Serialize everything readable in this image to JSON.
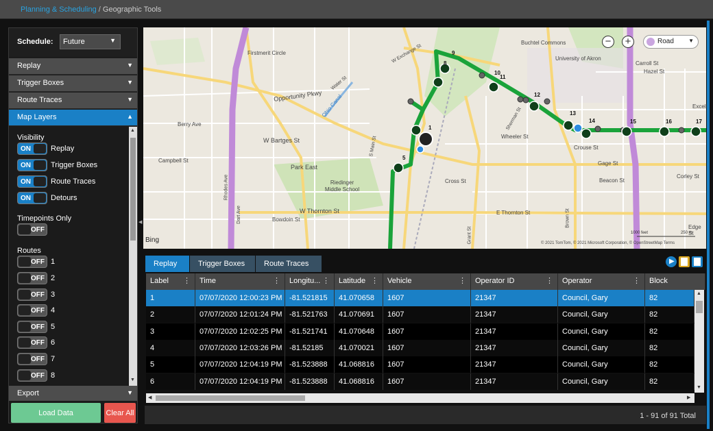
{
  "breadcrumb": {
    "section": "Planning & Scheduling",
    "separator": "/",
    "page": "Geographic Tools"
  },
  "sidebar": {
    "schedule_label": "Schedule:",
    "schedule_value": "Future",
    "accordion": [
      {
        "label": "Replay"
      },
      {
        "label": "Trigger Boxes"
      },
      {
        "label": "Route Traces"
      },
      {
        "label": "Map Layers"
      }
    ],
    "visibility_title": "Visibility",
    "visibility": [
      {
        "state": "ON",
        "label": "Replay"
      },
      {
        "state": "ON",
        "label": "Trigger Boxes"
      },
      {
        "state": "ON",
        "label": "Route Traces"
      },
      {
        "state": "ON",
        "label": "Detours"
      }
    ],
    "timepoints_title": "Timepoints Only",
    "timepoints_state": "OFF",
    "routes_title": "Routes",
    "routes": [
      {
        "state": "OFF",
        "label": "1"
      },
      {
        "state": "OFF",
        "label": "2"
      },
      {
        "state": "OFF",
        "label": "3"
      },
      {
        "state": "OFF",
        "label": "4"
      },
      {
        "state": "OFF",
        "label": "5"
      },
      {
        "state": "OFF",
        "label": "6"
      },
      {
        "state": "OFF",
        "label": "7"
      },
      {
        "state": "OFF",
        "label": "8"
      }
    ],
    "export_label": "Export",
    "load_button": "Load Data",
    "clear_button": "Clear All"
  },
  "map": {
    "zoom_out": "−",
    "zoom_in": "+",
    "style": "Road",
    "bing": "Bing",
    "copyright": "© 2021 TomTom, © 2021 Microsoft Corporation, © OpenStreetMap  Terms",
    "scale_ft": "1000 feet",
    "scale_m": "250 m",
    "labels": [
      {
        "text": "Buchtel Commons"
      },
      {
        "text": "University of Akron"
      },
      {
        "text": "Carroll St"
      },
      {
        "text": "Firstmerit Circle"
      },
      {
        "text": "Opportunity Pkwy"
      },
      {
        "text": "Ohio Canal"
      },
      {
        "text": "Water St"
      },
      {
        "text": "W Exchange St"
      },
      {
        "text": "Berry Ave"
      },
      {
        "text": "W Bartges St"
      },
      {
        "text": "Campbell St"
      },
      {
        "text": "Park East"
      },
      {
        "text": "Riedinger Middle School"
      },
      {
        "text": "W Thornton St"
      },
      {
        "text": "Bowdoin St"
      },
      {
        "text": "E Thornton St"
      },
      {
        "text": "Crouse St"
      },
      {
        "text": "Gage St"
      },
      {
        "text": "Beacon St"
      },
      {
        "text": "Cross St"
      },
      {
        "text": "Wheeler St"
      },
      {
        "text": "Hazel St"
      },
      {
        "text": "Corley St"
      },
      {
        "text": "Excel"
      },
      {
        "text": "Edge St"
      },
      {
        "text": "Sherman St"
      },
      {
        "text": "S Main St"
      },
      {
        "text": "Grant St"
      },
      {
        "text": "Brown St"
      },
      {
        "text": "Rhodes Ave"
      },
      {
        "text": "Dart Ave"
      }
    ],
    "stops": [
      {
        "n": "1"
      },
      {
        "n": "5"
      },
      {
        "n": "8"
      },
      {
        "n": "9"
      },
      {
        "n": "10"
      },
      {
        "n": "11"
      },
      {
        "n": "12"
      },
      {
        "n": "13"
      },
      {
        "n": "14"
      },
      {
        "n": "15"
      },
      {
        "n": "16"
      },
      {
        "n": "17"
      }
    ],
    "route_color": "#1aa33a",
    "highway_color": "#c08ad8"
  },
  "grid": {
    "tabs": [
      {
        "label": "Replay"
      },
      {
        "label": "Trigger Boxes"
      },
      {
        "label": "Route Traces"
      }
    ],
    "columns": [
      {
        "label": "Label"
      },
      {
        "label": "Time"
      },
      {
        "label": "Longitu..."
      },
      {
        "label": "Latitude"
      },
      {
        "label": "Vehicle"
      },
      {
        "label": "Operator ID"
      },
      {
        "label": "Operator"
      },
      {
        "label": "Block"
      }
    ],
    "rows": [
      [
        "1",
        "07/07/2020 12:00:23 PM",
        "-81.521815",
        "41.070658",
        "1607",
        "21347",
        "Council, Gary",
        "82"
      ],
      [
        "2",
        "07/07/2020 12:01:24 PM",
        "-81.521763",
        "41.070691",
        "1607",
        "21347",
        "Council, Gary",
        "82"
      ],
      [
        "3",
        "07/07/2020 12:02:25 PM",
        "-81.521741",
        "41.070648",
        "1607",
        "21347",
        "Council, Gary",
        "82"
      ],
      [
        "4",
        "07/07/2020 12:03:26 PM",
        "-81.52185",
        "41.070021",
        "1607",
        "21347",
        "Council, Gary",
        "82"
      ],
      [
        "5",
        "07/07/2020 12:04:19 PM",
        "-81.523888",
        "41.068816",
        "1607",
        "21347",
        "Council, Gary",
        "82"
      ],
      [
        "6",
        "07/07/2020 12:04:19 PM",
        "-81.523888",
        "41.068816",
        "1607",
        "21347",
        "Council, Gary",
        "82"
      ]
    ],
    "selected_row": 0,
    "footer": "1 - 91 of 91 Total"
  },
  "colors": {
    "accent": "#1a80c6",
    "load": "#6dc993",
    "clear": "#e8564e"
  }
}
